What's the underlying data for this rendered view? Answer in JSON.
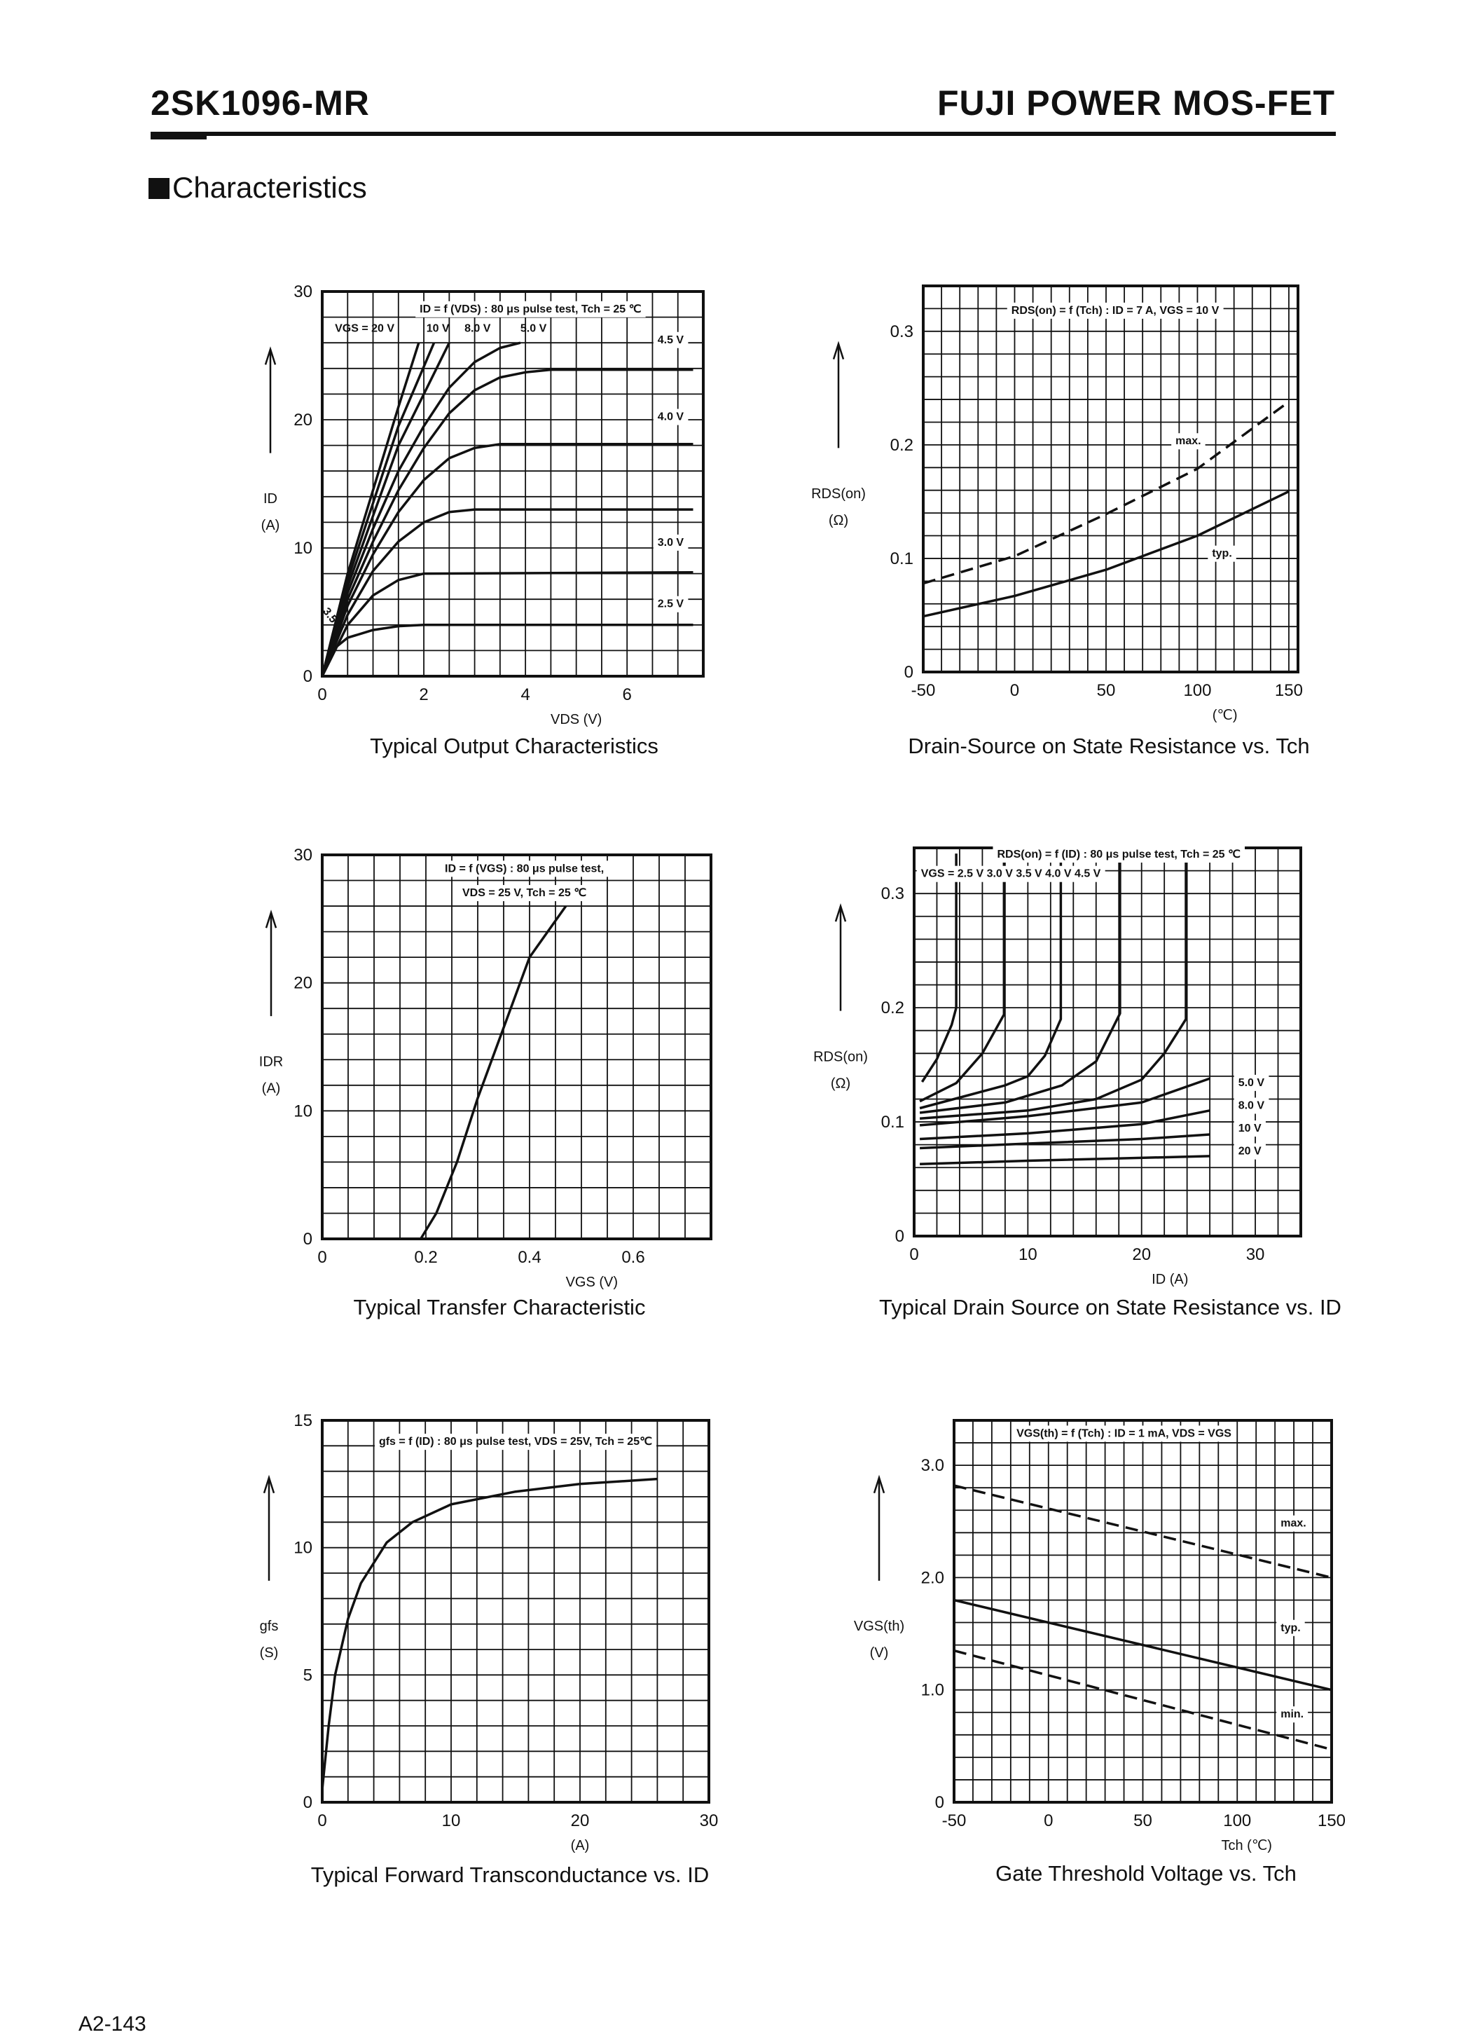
{
  "header": {
    "part_number": "2SK1096-MR",
    "product_line": "FUJI POWER MOS-FET"
  },
  "section_title": "Characteristics",
  "footer": {
    "page_number": "A2-143"
  },
  "chart_data": [
    {
      "type": "line",
      "title": "Typical Output Characteristics",
      "xlabel": "VDS (V)",
      "ylabel": "ID",
      "yunit": "(A)",
      "xlim": [
        0,
        7.5
      ],
      "ylim": [
        0,
        30
      ],
      "grid": true,
      "xticks": [
        0,
        2,
        4,
        6
      ],
      "xtick_labels": [
        "0",
        "2",
        "4",
        "6"
      ],
      "yticks": [
        0,
        10,
        20,
        30
      ],
      "ytick_labels": [
        "0",
        "10",
        "20",
        "30"
      ],
      "annotations": [
        "ID = f (VDS) : 80 μs pulse test, Tch = 25 ℃",
        "VGS = 20 V",
        "10 V",
        "8.0 V",
        "5.0 V",
        "4.5 V",
        "4.0 V",
        "3.0 V",
        "2.5 V",
        "3.5 V"
      ],
      "series": [
        {
          "name": "20 V",
          "points": [
            [
              0,
              0
            ],
            [
              0.5,
              8
            ],
            [
              1,
              14.5
            ],
            [
              1.5,
              21
            ],
            [
              1.9,
              26
            ]
          ]
        },
        {
          "name": "10 V",
          "points": [
            [
              0,
              0
            ],
            [
              0.5,
              7.5
            ],
            [
              1,
              13.5
            ],
            [
              1.5,
              19.5
            ],
            [
              2.2,
              26
            ]
          ]
        },
        {
          "name": "8.0 V",
          "points": [
            [
              0,
              0
            ],
            [
              0.5,
              7
            ],
            [
              1,
              12.5
            ],
            [
              1.5,
              18
            ],
            [
              2,
              22
            ],
            [
              2.5,
              26
            ]
          ]
        },
        {
          "name": "5.0 V",
          "points": [
            [
              0,
              0
            ],
            [
              0.5,
              6.5
            ],
            [
              1,
              11.5
            ],
            [
              1.5,
              16
            ],
            [
              2,
              19.5
            ],
            [
              2.5,
              22.5
            ],
            [
              3,
              24.5
            ],
            [
              3.5,
              25.6
            ],
            [
              3.9,
              26
            ]
          ]
        },
        {
          "name": "4.5 V",
          "points": [
            [
              0,
              0
            ],
            [
              0.5,
              6
            ],
            [
              1,
              10.5
            ],
            [
              1.5,
              14.5
            ],
            [
              2,
              17.8
            ],
            [
              2.5,
              20.5
            ],
            [
              3,
              22.3
            ],
            [
              3.5,
              23.3
            ],
            [
              4,
              23.7
            ],
            [
              4.5,
              23.9
            ],
            [
              7.3,
              23.9
            ]
          ]
        },
        {
          "name": "4.0 V",
          "points": [
            [
              0,
              0
            ],
            [
              0.5,
              5.5
            ],
            [
              1,
              9.5
            ],
            [
              1.5,
              12.8
            ],
            [
              2,
              15.3
            ],
            [
              2.5,
              17
            ],
            [
              3,
              17.8
            ],
            [
              3.5,
              18.1
            ],
            [
              7.3,
              18.1
            ]
          ]
        },
        {
          "name": "3.5 V",
          "points": [
            [
              0,
              0
            ],
            [
              0.5,
              4.8
            ],
            [
              1,
              8.2
            ],
            [
              1.5,
              10.5
            ],
            [
              2,
              12
            ],
            [
              2.5,
              12.8
            ],
            [
              3,
              13
            ],
            [
              7.3,
              13
            ]
          ]
        },
        {
          "name": "3.0 V",
          "points": [
            [
              0,
              0
            ],
            [
              0.5,
              4
            ],
            [
              1,
              6.3
            ],
            [
              1.5,
              7.5
            ],
            [
              2,
              8
            ],
            [
              7.3,
              8.1
            ]
          ]
        },
        {
          "name": "2.5 V",
          "points": [
            [
              0,
              0
            ],
            [
              0.25,
              2.2
            ],
            [
              0.5,
              3
            ],
            [
              1,
              3.6
            ],
            [
              1.5,
              3.9
            ],
            [
              2,
              4
            ],
            [
              7.3,
              4
            ]
          ]
        }
      ]
    },
    {
      "type": "line",
      "title": "Drain-Source on State Resistance vs. Tch",
      "xlabel": "(℃)",
      "ylabel": "RDS(on)",
      "yunit": "(Ω)",
      "xlim": [
        -50,
        155
      ],
      "ylim": [
        0,
        0.34
      ],
      "grid": true,
      "xticks": [
        -50,
        0,
        50,
        100,
        150
      ],
      "xtick_labels": [
        "-50",
        "0",
        "50",
        "100",
        "150"
      ],
      "yticks": [
        0,
        0.1,
        0.2,
        0.3
      ],
      "ytick_labels": [
        "0",
        "0.1",
        "0.2",
        "0.3"
      ],
      "annotations": [
        "RDS(on) = f (Tch) : ID = 7 A, VGS = 10 V",
        "max.",
        "typ."
      ],
      "series": [
        {
          "name": "max.",
          "style": "dashed",
          "points": [
            [
              -50,
              0.078
            ],
            [
              0,
              0.102
            ],
            [
              50,
              0.139
            ],
            [
              100,
              0.179
            ],
            [
              150,
              0.238
            ]
          ]
        },
        {
          "name": "typ.",
          "style": "solid",
          "points": [
            [
              -50,
              0.049
            ],
            [
              0,
              0.067
            ],
            [
              50,
              0.09
            ],
            [
              100,
              0.12
            ],
            [
              150,
              0.159
            ]
          ]
        }
      ]
    },
    {
      "type": "line",
      "title": "Typical Transfer Characteristic",
      "xlabel": "VGS (V)",
      "ylabel": "IDR",
      "yunit": "(A)",
      "xlim": [
        0,
        0.75
      ],
      "ylim": [
        0,
        30
      ],
      "grid": true,
      "xticks": [
        0,
        0.2,
        0.4,
        0.6
      ],
      "xtick_labels": [
        "0",
        "0.2",
        "0.4",
        "0.6"
      ],
      "yticks": [
        0,
        10,
        20,
        30
      ],
      "ytick_labels": [
        "0",
        "10",
        "20",
        "30"
      ],
      "annotations": [
        "ID = f (VGS) : 80 μs pulse test,",
        "VDS = 25 V, Tch = 25 ℃"
      ],
      "series": [
        {
          "points": [
            [
              0.19,
              0
            ],
            [
              0.22,
              2
            ],
            [
              0.26,
              6
            ],
            [
              0.3,
              11
            ],
            [
              0.35,
              16.5
            ],
            [
              0.4,
              22
            ],
            [
              0.47,
              26
            ]
          ]
        }
      ]
    },
    {
      "type": "line",
      "title": "Typical Drain Source on State Resistance vs. ID",
      "xlabel": "ID (A)",
      "ylabel": "RDS(on)",
      "yunit": "(Ω)",
      "xlim": [
        0,
        34
      ],
      "ylim": [
        0,
        0.34
      ],
      "grid": true,
      "xticks": [
        0,
        10,
        20,
        30
      ],
      "xtick_labels": [
        "0",
        "10",
        "20",
        "30"
      ],
      "yticks": [
        0,
        0.1,
        0.2,
        0.3
      ],
      "ytick_labels": [
        "0",
        "0.1",
        "0.2",
        "0.3"
      ],
      "annotations": [
        "RDS(on) = f (ID) : 80 μs pulse test, Tch = 25 ℃",
        "VGS = 2.5 V   3.0 V   3.5 V   4.0 V   4.5 V",
        "5.0 V",
        "8.0 V",
        "10 V",
        "20 V"
      ],
      "series": [
        {
          "name": "2.5 V",
          "points": [
            [
              0.7,
              0.135
            ],
            [
              2,
              0.155
            ],
            [
              3.3,
              0.185
            ],
            [
              3.7,
              0.2
            ],
            [
              3.7,
              0.335
            ]
          ]
        },
        {
          "name": "3.0 V",
          "points": [
            [
              0.5,
              0.118
            ],
            [
              3.7,
              0.134
            ],
            [
              6,
              0.16
            ],
            [
              7.9,
              0.194
            ],
            [
              7.9,
              0.335
            ]
          ]
        },
        {
          "name": "3.5 V",
          "points": [
            [
              0.5,
              0.112
            ],
            [
              5,
              0.124
            ],
            [
              8,
              0.132
            ],
            [
              10,
              0.14
            ],
            [
              11.5,
              0.158
            ],
            [
              12.9,
              0.19
            ],
            [
              12.9,
              0.335
            ]
          ]
        },
        {
          "name": "4.0 V",
          "points": [
            [
              0.5,
              0.108
            ],
            [
              8,
              0.117
            ],
            [
              13,
              0.132
            ],
            [
              16,
              0.153
            ],
            [
              18.1,
              0.195
            ],
            [
              18.1,
              0.335
            ]
          ]
        },
        {
          "name": "4.5 V",
          "points": [
            [
              0.5,
              0.103
            ],
            [
              10,
              0.11
            ],
            [
              16,
              0.12
            ],
            [
              20,
              0.137
            ],
            [
              22,
              0.16
            ],
            [
              23.9,
              0.19
            ],
            [
              23.9,
              0.335
            ]
          ]
        },
        {
          "name": "5.0 V",
          "points": [
            [
              0.5,
              0.097
            ],
            [
              10,
              0.105
            ],
            [
              20,
              0.117
            ],
            [
              26,
              0.138
            ]
          ]
        },
        {
          "name": "8.0 V",
          "points": [
            [
              0.5,
              0.085
            ],
            [
              10,
              0.09
            ],
            [
              20,
              0.098
            ],
            [
              26,
              0.11
            ]
          ]
        },
        {
          "name": "10 V",
          "points": [
            [
              0.5,
              0.077
            ],
            [
              10,
              0.081
            ],
            [
              20,
              0.085
            ],
            [
              26,
              0.089
            ]
          ]
        },
        {
          "name": "20 V",
          "points": [
            [
              0.5,
              0.063
            ],
            [
              10,
              0.066
            ],
            [
              26,
              0.07
            ]
          ]
        }
      ]
    },
    {
      "type": "line",
      "title": "Typical Forward Transconductance vs. ID",
      "xlabel": "(A)",
      "ylabel": "gfs",
      "yunit": "(S)",
      "xlim": [
        0,
        30
      ],
      "ylim": [
        0,
        15
      ],
      "grid": true,
      "xticks": [
        0,
        10,
        20,
        30
      ],
      "xtick_labels": [
        "0",
        "10",
        "20",
        "30"
      ],
      "yticks": [
        0,
        5,
        10,
        15
      ],
      "ytick_labels": [
        "0",
        "5",
        "10",
        "15"
      ],
      "annotations": [
        "gfs = f (ID) : 80 μs pulse test, VDS = 25V, Tch = 25℃"
      ],
      "series": [
        {
          "points": [
            [
              0,
              0.5
            ],
            [
              0.5,
              3
            ],
            [
              1,
              5
            ],
            [
              2,
              7.2
            ],
            [
              3,
              8.6
            ],
            [
              5,
              10.2
            ],
            [
              7,
              11
            ],
            [
              10,
              11.7
            ],
            [
              15,
              12.2
            ],
            [
              20,
              12.5
            ],
            [
              26,
              12.7
            ]
          ]
        }
      ]
    },
    {
      "type": "line",
      "title": "Gate Threshold Voltage vs. Tch",
      "xlabel": "Tch (℃)",
      "ylabel": "VGS(th)",
      "yunit": "(V)",
      "xlim": [
        -50,
        150
      ],
      "ylim": [
        0,
        3.4
      ],
      "grid": true,
      "xticks": [
        -50,
        0,
        50,
        100,
        150
      ],
      "xtick_labels": [
        "-50",
        "0",
        "50",
        "100",
        "150"
      ],
      "yticks": [
        0,
        1,
        2,
        3
      ],
      "ytick_labels": [
        "0",
        "1.0",
        "2.0",
        "3.0"
      ],
      "annotations": [
        "VGS(th) = f (Tch) : ID = 1 mA, VDS = VGS",
        "max.",
        "typ.",
        "min."
      ],
      "series": [
        {
          "name": "max.",
          "style": "dashed",
          "points": [
            [
              -50,
              2.82
            ],
            [
              150,
              2.0
            ]
          ]
        },
        {
          "name": "typ.",
          "style": "solid",
          "points": [
            [
              -50,
              1.8
            ],
            [
              150,
              1.0
            ]
          ]
        },
        {
          "name": "min.",
          "style": "dashed",
          "points": [
            [
              -50,
              1.35
            ],
            [
              150,
              0.47
            ]
          ]
        }
      ]
    }
  ]
}
